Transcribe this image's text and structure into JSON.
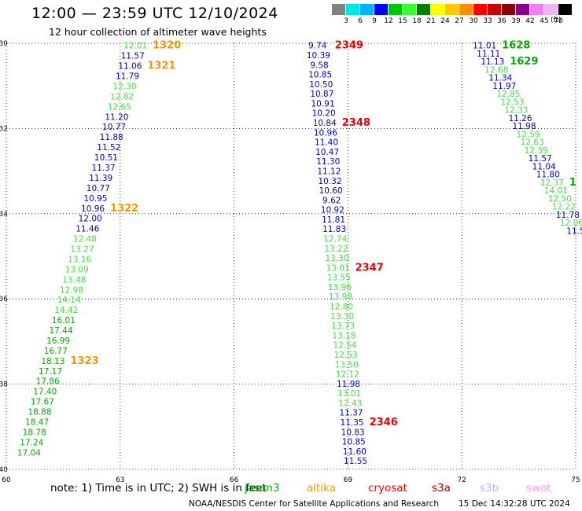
{
  "title": "12:00 — 23:59 UTC 12/10/2024",
  "subtitle": "12 hour collection of altimeter wave heights",
  "colorbar": {
    "unit": "(ft)",
    "colors": [
      "#808080",
      "#00e5e5",
      "#00b4ff",
      "#0000ff",
      "#00c800",
      "#33ff33",
      "#008000",
      "#ffff00",
      "#ffc800",
      "#ff8c00",
      "#ff0000",
      "#c80000",
      "#8b0000",
      "#8b008b",
      "#ee82ee",
      "#f0b4f0",
      "#000000"
    ],
    "labels": [
      "3",
      "6",
      "9",
      "12",
      "15",
      "18",
      "21",
      "24",
      "27",
      "30",
      "33",
      "36",
      "39",
      "42",
      "45",
      "70"
    ]
  },
  "colors": {
    "blue": "#0000cc",
    "lightgreen": "#44dd44",
    "orange": "#ee9a00",
    "red": "#ee0000",
    "darkgreen": "#00aa00"
  },
  "chart_data": {
    "type": "scatter",
    "xlim": [
      60,
      75
    ],
    "ylim": [
      -40,
      -30
    ],
    "x_ticks": [
      "60",
      "63",
      "66",
      "69",
      "72",
      "75"
    ],
    "y_ticks": [
      "-30",
      "-32",
      "-34",
      "-36",
      "-38",
      "-40"
    ],
    "grid": true,
    "tracks": [
      {
        "x_start": 63.4,
        "x_end": 60.6,
        "lat_start": -30.05,
        "lat_end": -39.6,
        "values": [
          "12.01",
          "11.57",
          "11.06",
          "11.79",
          "12.30",
          "12.82",
          "12.65",
          "11.20",
          "10.77",
          "11.88",
          "11.52",
          "10.51",
          "11.37",
          "11.39",
          "10.77",
          "10.95",
          "10.96",
          "12.00",
          "11.46",
          "12.48",
          "13.27",
          "13.16",
          "13.09",
          "13.48",
          "12.98",
          "14.14",
          "14.42",
          "16.01",
          "17.44",
          "16.99",
          "16.77",
          "18.13",
          "17.17",
          "17.86",
          "17.40",
          "17.67",
          "18.88",
          "18.47",
          "18.78",
          "17.24",
          "17.04"
        ],
        "colors": [
          "lightgreen",
          "blue",
          "blue",
          "blue",
          "lightgreen",
          "lightgreen",
          "lightgreen",
          "blue",
          "blue",
          "blue",
          "blue",
          "blue",
          "blue",
          "blue",
          "blue",
          "blue",
          "blue",
          "blue",
          "blue",
          "lightgreen",
          "lightgreen",
          "lightgreen",
          "lightgreen",
          "lightgreen",
          "lightgreen",
          "lightgreen",
          "lightgreen",
          "darkgreen",
          "darkgreen",
          "darkgreen",
          "darkgreen",
          "darkgreen",
          "darkgreen",
          "darkgreen",
          "darkgreen",
          "darkgreen",
          "darkgreen",
          "darkgreen",
          "darkgreen",
          "darkgreen",
          "darkgreen"
        ],
        "time_labels": [
          {
            "text": "1320",
            "index": 0,
            "color": "orange"
          },
          {
            "text": "1321",
            "index": 2,
            "color": "orange"
          },
          {
            "text": "1322",
            "index": 16,
            "color": "orange"
          },
          {
            "text": "1323",
            "index": 31,
            "color": "orange"
          }
        ]
      },
      {
        "x_start": 68.2,
        "x_end": 69.2,
        "lat_start": -30.05,
        "lat_end": -39.8,
        "values": [
          "9.74",
          "10.39",
          "9.58",
          "10.85",
          "10.50",
          "10.87",
          "10.91",
          "10.20",
          "10.84",
          "10.96",
          "11.40",
          "10.47",
          "11.30",
          "11.12",
          "10.32",
          "10.60",
          "9.62",
          "10.92",
          "11.81",
          "11.83",
          "12.74",
          "13.22",
          "13.30",
          "13.01",
          "13.55",
          "13.96",
          "13.98",
          "12.80",
          "13.30",
          "13.73",
          "13.18",
          "12.54",
          "12.53",
          "13.50",
          "12.12",
          "11.98",
          "13.01",
          "12.43",
          "11.37",
          "11.35",
          "10.83",
          "10.85",
          "11.60",
          "11.55"
        ],
        "colors": [
          "blue",
          "blue",
          "blue",
          "blue",
          "blue",
          "blue",
          "blue",
          "blue",
          "blue",
          "blue",
          "blue",
          "blue",
          "blue",
          "blue",
          "blue",
          "blue",
          "blue",
          "blue",
          "blue",
          "blue",
          "lightgreen",
          "lightgreen",
          "lightgreen",
          "lightgreen",
          "lightgreen",
          "lightgreen",
          "lightgreen",
          "lightgreen",
          "lightgreen",
          "lightgreen",
          "lightgreen",
          "lightgreen",
          "lightgreen",
          "lightgreen",
          "lightgreen",
          "blue",
          "lightgreen",
          "lightgreen",
          "blue",
          "blue",
          "blue",
          "blue",
          "blue",
          "blue"
        ],
        "time_labels": [
          {
            "text": "2349",
            "index": 0,
            "color": "red"
          },
          {
            "text": "2348",
            "index": 8,
            "color": "red"
          },
          {
            "text": "2347",
            "index": 23,
            "color": "red"
          },
          {
            "text": "2346",
            "index": 39,
            "color": "red"
          }
        ]
      },
      {
        "x_start": 72.6,
        "x_end": 75.0,
        "lat_start": -30.05,
        "lat_end": -34.4,
        "values": [
          "11.01",
          "11.11",
          "11.13",
          "12.68",
          "11.34",
          "11.97",
          "12.85",
          "12.53",
          "12.33",
          "11.26",
          "11.98",
          "12.59",
          "12.63",
          "12.39",
          "11.57",
          "11.04",
          "11.80",
          "12.37",
          "14.01",
          "12.50",
          "12.22",
          "11.78",
          "12.06",
          "11.5"
        ],
        "colors": [
          "blue",
          "blue",
          "blue",
          "lightgreen",
          "blue",
          "blue",
          "lightgreen",
          "lightgreen",
          "lightgreen",
          "blue",
          "blue",
          "lightgreen",
          "lightgreen",
          "lightgreen",
          "blue",
          "blue",
          "blue",
          "lightgreen",
          "lightgreen",
          "lightgreen",
          "lightgreen",
          "blue",
          "lightgreen",
          "blue"
        ],
        "time_labels": [
          {
            "text": "1628",
            "index": 0,
            "color": "darkgreen"
          },
          {
            "text": "1629",
            "index": 2,
            "color": "darkgreen"
          },
          {
            "text": "1",
            "index": 17,
            "color": "darkgreen"
          }
        ]
      }
    ]
  },
  "footer": {
    "note": "note:  1) Time is in UTC; 2) SWH is in feet",
    "satellites": [
      {
        "name": "jason3",
        "color": "#00aa00"
      },
      {
        "name": "altika",
        "color": "#ee9a00"
      },
      {
        "name": "cryosat",
        "color": "#ee0000"
      },
      {
        "name": "s3a",
        "color": "#aa0000"
      },
      {
        "name": "s3b",
        "color": "#b4b4ff"
      },
      {
        "name": "swot",
        "color": "#ff99ff"
      }
    ],
    "credit": "NOAA/NESDIS Center for Satellite Applications and Research",
    "timestamp": "15 Dec 14:32:28 UTC 2024"
  }
}
